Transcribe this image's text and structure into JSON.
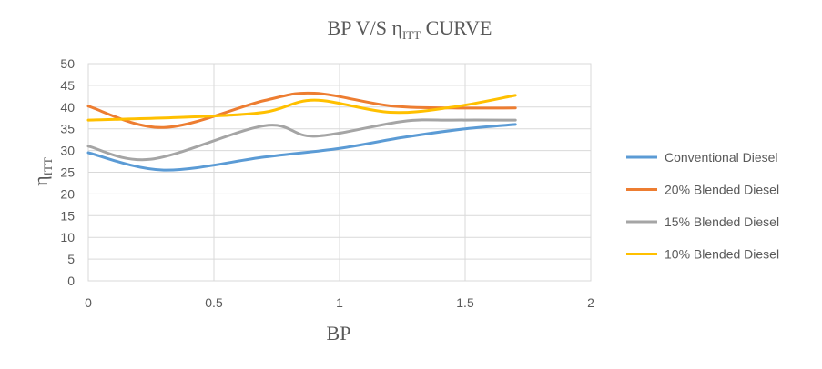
{
  "chart_data": {
    "type": "line",
    "title": {
      "main": "BP V/S η",
      "sub": "ITT",
      "suffix": " CURVE"
    },
    "xlabel": "BP",
    "ylabel": {
      "main": "η",
      "sub": "ITT"
    },
    "xlim": [
      0,
      2
    ],
    "ylim": [
      0,
      50
    ],
    "x_ticks": [
      "0",
      "0.5",
      "1",
      "1.5",
      "2"
    ],
    "y_ticks": [
      "0",
      "5",
      "10",
      "15",
      "20",
      "25",
      "30",
      "35",
      "40",
      "45",
      "50"
    ],
    "grid": true,
    "legend_position": "right",
    "series": [
      {
        "name": "Conventional Diesel",
        "color": "#5B9BD5",
        "x": [
          0,
          0.3,
          0.7,
          1.0,
          1.25,
          1.5,
          1.7
        ],
        "y": [
          29.5,
          25.5,
          28.5,
          30.5,
          33,
          35,
          36
        ]
      },
      {
        "name": "20% Blended Diesel",
        "color": "#ED7D31",
        "x": [
          0,
          0.3,
          0.7,
          0.9,
          1.2,
          1.45,
          1.7
        ],
        "y": [
          40.2,
          35.3,
          41.5,
          43.2,
          40.3,
          39.8,
          39.8
        ]
      },
      {
        "name": "15% Blended Diesel",
        "color": "#A5A5A5",
        "x": [
          0,
          0.25,
          0.7,
          0.9,
          1.25,
          1.45,
          1.7
        ],
        "y": [
          31,
          28,
          35.7,
          33.3,
          36.7,
          37,
          37
        ]
      },
      {
        "name": "10% Blended Diesel",
        "color": "#FFC000",
        "x": [
          0,
          0.4,
          0.7,
          0.9,
          1.2,
          1.45,
          1.7
        ],
        "y": [
          37,
          37.7,
          38.8,
          41.6,
          38.8,
          40,
          42.7
        ]
      }
    ]
  }
}
